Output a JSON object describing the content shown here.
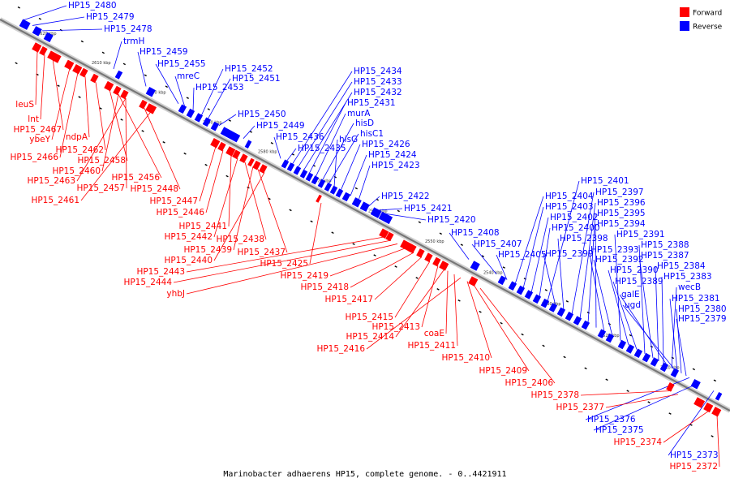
{
  "caption": "Marinobacter adhaerens HP15, complete genome. - 0..4421911",
  "legend": [
    {
      "label": "Forward",
      "color": "#ff0000"
    },
    {
      "label": "Reverse",
      "color": "#0000ff"
    }
  ],
  "colors": {
    "forward": "#ff0000",
    "reverse": "#0000ff",
    "backbone": "#888888"
  },
  "ticks": [
    "2620 kbp",
    "2610 kbp",
    "2600 kbp",
    "2590 kbp",
    "2580 kbp",
    "2570 kbp",
    "2560 kbp",
    "2550 kbp",
    "2540 kbp",
    "2530 kbp",
    "2520 kbp",
    "2510 kbp"
  ],
  "reverse_genes": [
    "HP15_2480",
    "HP15_2479",
    "HP15_2478",
    "trmH",
    "HP15_2459",
    "HP15_2455",
    "mreC",
    "HP15_2453",
    "HP15_2452",
    "HP15_2451",
    "HP15_2450",
    "HP15_2449",
    "HP15_2436",
    "HP15_2435",
    "HP15_2434",
    "HP15_2433",
    "HP15_2432",
    "HP15_2431",
    "murA",
    "hisD",
    "hisC1",
    "hisG",
    "HP15_2426",
    "HP15_2424",
    "HP15_2423",
    "HP15_2422",
    "HP15_2421",
    "HP15_2420",
    "HP15_2408",
    "HP15_2407",
    "HP15_2405",
    "HP15_2404",
    "HP15_2403",
    "HP15_2402",
    "HP15_2400",
    "HP15_2401",
    "HP15_2399",
    "HP15_2398",
    "HP15_2397",
    "HP15_2396",
    "HP15_2395",
    "HP15_2394",
    "HP15_2393",
    "HP15_2392",
    "HP15_2391",
    "HP15_2390",
    "HP15_2389",
    "HP15_2388",
    "HP15_2387",
    "HP15_2384",
    "HP15_2383",
    "galE",
    "wecB",
    "ugd",
    "HP15_2381",
    "HP15_2380",
    "HP15_2379",
    "HP15_2376",
    "HP15_2375",
    "HP15_2373"
  ],
  "forward_genes": [
    "leuS",
    "lnt",
    "HP15_2467",
    "ybeY",
    "HP15_2466",
    "ndpA",
    "HP15_2462",
    "HP15_2458",
    "HP15_2460",
    "HP15_2463",
    "HP15_2456",
    "HP15_2457",
    "HP15_2448",
    "HP15_2461",
    "HP15_2447",
    "HP15_2446",
    "HP15_2441",
    "HP15_2442",
    "HP15_2438",
    "HP15_2439",
    "HP15_2437",
    "HP15_2440",
    "HP15_2425",
    "HP15_2443",
    "HP15_2444",
    "yhbJ",
    "HP15_2419",
    "HP15_2418",
    "HP15_2417",
    "HP15_2415",
    "HP15_2413",
    "HP15_2414",
    "coaE",
    "HP15_2411",
    "HP15_2416",
    "HP15_2410",
    "HP15_2409",
    "HP15_2406",
    "HP15_2378",
    "HP15_2377",
    "HP15_2374",
    "HP15_2372"
  ]
}
